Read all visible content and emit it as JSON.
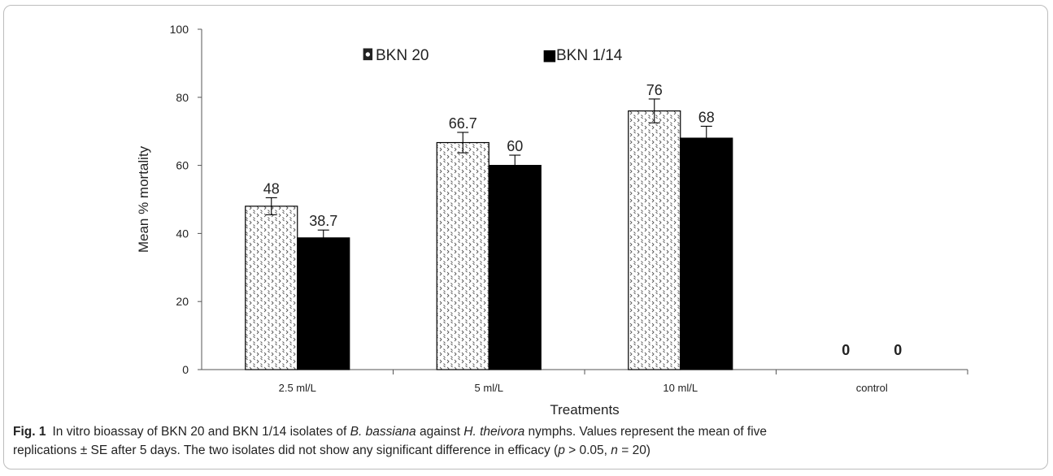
{
  "chart_data": {
    "type": "bar",
    "categories": [
      "2.5 ml/L",
      "5 ml/L",
      "10 ml/L",
      "control"
    ],
    "series": [
      {
        "name": "BKN 20",
        "values": [
          48,
          66.7,
          76,
          0
        ],
        "labels": [
          "48",
          "66.7",
          "76",
          "0"
        ],
        "errors": [
          2.5,
          3,
          3.5,
          0
        ],
        "fill": "dotted-pattern"
      },
      {
        "name": "BKN 1/14",
        "values": [
          38.7,
          60,
          68,
          0
        ],
        "labels": [
          "38.7",
          "60",
          "68",
          "0"
        ],
        "errors": [
          2.3,
          3,
          3.5,
          0
        ],
        "fill": "#000000"
      }
    ],
    "xlabel": "Treatments",
    "ylabel": "Mean % mortality",
    "ylim": [
      0,
      100
    ],
    "yticks": [
      "0",
      "20",
      "40",
      "60",
      "80",
      "100"
    ],
    "legend": {
      "position": "top-center",
      "marker_open": "◘",
      "marker_filled": "■"
    },
    "grid": false
  },
  "caption": {
    "label": "Fig. 1",
    "part1": "In vitro bioassay of BKN 20 and BKN 1/14 isolates of",
    "species1": "B. bassiana",
    "part2": "against",
    "species2": "H. theivora",
    "part3": "nymphs. Values represent the mean of five replications ± SE after 5 days. The two isolates did not show any significant difference in efficacy (",
    "p": "p",
    "part4": " > 0.05, ",
    "n": "n",
    "part5": " = 20)"
  }
}
